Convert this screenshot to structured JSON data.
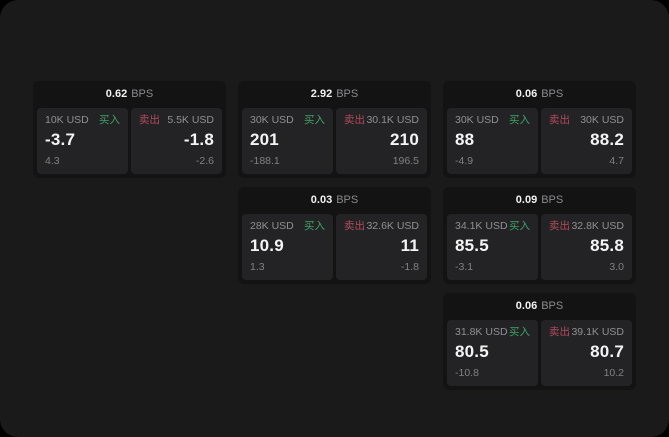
{
  "labels": {
    "bps_unit": "BPS",
    "buy": "买入",
    "sell": "卖出"
  },
  "colors": {
    "outer_background": "#000000",
    "page_background": "#1a1a1b",
    "card_background": "#131314",
    "panel_background": "#232325",
    "buy_green": "#3fa266",
    "sell_red": "#b24a5e",
    "text_primary": "#f2f2f2",
    "text_secondary": "#909093",
    "text_dim": "#818184"
  },
  "cards": [
    {
      "bps": "0.62",
      "buy": {
        "amount": "10K USD",
        "price": "-3.7",
        "sub": "4.3"
      },
      "sell": {
        "amount": "5.5K USD",
        "price": "-1.8",
        "sub": "-2.6"
      }
    },
    {
      "bps": "2.92",
      "buy": {
        "amount": "30K USD",
        "price": "201",
        "sub": "-188.1"
      },
      "sell": {
        "amount": "30.1K USD",
        "price": "210",
        "sub": "196.5"
      }
    },
    {
      "bps": "0.06",
      "buy": {
        "amount": "30K USD",
        "price": "88",
        "sub": "-4.9"
      },
      "sell": {
        "amount": "30K USD",
        "price": "88.2",
        "sub": "4.7"
      }
    },
    {
      "bps": "0.03",
      "buy": {
        "amount": "28K USD",
        "price": "10.9",
        "sub": "1.3"
      },
      "sell": {
        "amount": "32.6K USD",
        "price": "11",
        "sub": "-1.8"
      }
    },
    {
      "bps": "0.09",
      "buy": {
        "amount": "34.1K USD",
        "price": "85.5",
        "sub": "-3.1"
      },
      "sell": {
        "amount": "32.8K USD",
        "price": "85.8",
        "sub": "3.0"
      }
    },
    {
      "bps": "0.06",
      "buy": {
        "amount": "31.8K USD",
        "price": "80.5",
        "sub": "-10.8"
      },
      "sell": {
        "amount": "39.1K USD",
        "price": "80.7",
        "sub": "10.2"
      }
    }
  ]
}
